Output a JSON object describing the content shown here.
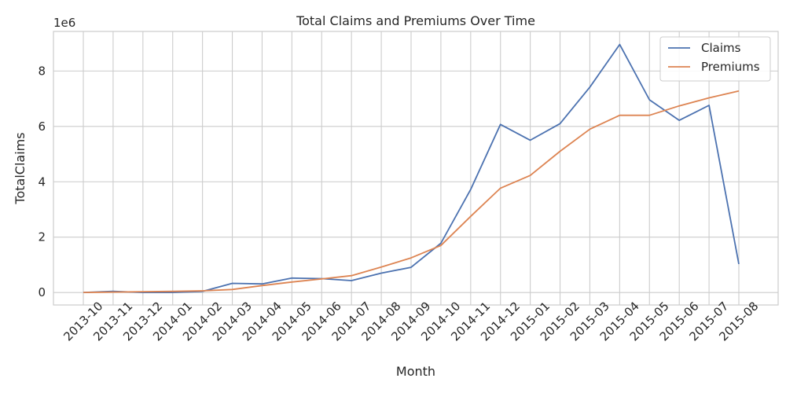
{
  "chart_data": {
    "type": "line",
    "title": "Total Claims and Premiums Over Time",
    "xlabel": "Month",
    "ylabel": "TotalClaims",
    "y_offset_label": "1e6",
    "categories": [
      "2013-10",
      "2013-11",
      "2013-12",
      "2014-01",
      "2014-02",
      "2014-03",
      "2014-04",
      "2014-05",
      "2014-06",
      "2014-07",
      "2014-08",
      "2014-09",
      "2014-10",
      "2014-11",
      "2014-12",
      "2015-01",
      "2015-02",
      "2015-03",
      "2015-04",
      "2015-05",
      "2015-06",
      "2015-07",
      "2015-08"
    ],
    "series": [
      {
        "name": "Claims",
        "color": "#4c72b0",
        "values": [
          0,
          45000,
          0,
          0,
          40000,
          330000,
          310000,
          520000,
          500000,
          430000,
          700000,
          910000,
          1780000,
          3720000,
          6070000,
          5500000,
          6100000,
          7420000,
          8960000,
          6960000,
          6220000,
          6760000,
          1030000
        ]
      },
      {
        "name": "Premiums",
        "color": "#dd8452",
        "values": [
          0,
          15000,
          30000,
          40000,
          60000,
          110000,
          250000,
          380000,
          490000,
          610000,
          920000,
          1250000,
          1700000,
          2750000,
          3770000,
          4230000,
          5100000,
          5900000,
          6400000,
          6400000,
          6740000,
          7030000,
          7280000
        ]
      }
    ],
    "y_ticks": [
      0,
      2000000,
      4000000,
      6000000,
      8000000
    ],
    "y_tick_labels": [
      "0",
      "2",
      "4",
      "6",
      "8"
    ],
    "ylim": [
      -450000,
      9430000
    ],
    "grid": true,
    "legend_position": "top-right"
  }
}
